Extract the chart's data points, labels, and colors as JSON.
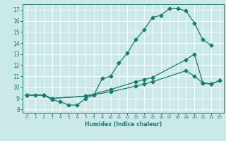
{
  "title": "",
  "xlabel": "Humidex (Indice chaleur)",
  "xlim": [
    -0.5,
    23.5
  ],
  "ylim": [
    7.7,
    17.5
  ],
  "xticks": [
    0,
    1,
    2,
    3,
    4,
    5,
    6,
    7,
    8,
    9,
    10,
    11,
    12,
    13,
    14,
    15,
    16,
    17,
    18,
    19,
    20,
    21,
    22,
    23
  ],
  "yticks": [
    8,
    9,
    10,
    11,
    12,
    13,
    14,
    15,
    16,
    17
  ],
  "bg_color": "#cce9e9",
  "line_color": "#1a7a6e",
  "grid_color": "#ffffff",
  "line1_x": [
    0,
    1,
    2,
    3,
    4,
    5,
    6,
    7,
    8,
    9,
    10,
    11,
    12,
    13,
    14,
    15,
    16,
    17,
    18,
    19,
    20,
    21,
    22
  ],
  "line1_y": [
    9.3,
    9.3,
    9.3,
    8.9,
    8.7,
    8.4,
    8.4,
    9.0,
    9.3,
    10.8,
    11.0,
    12.2,
    13.1,
    14.3,
    15.2,
    16.3,
    16.5,
    17.1,
    17.1,
    16.9,
    15.8,
    14.3,
    13.8
  ],
  "line2_x": [
    0,
    2,
    3,
    7,
    10,
    13,
    14,
    15,
    19,
    20,
    21,
    22,
    23
  ],
  "line2_y": [
    9.3,
    9.3,
    9.0,
    9.2,
    9.8,
    10.5,
    10.7,
    10.9,
    12.5,
    13.0,
    10.4,
    10.3,
    10.6
  ],
  "line3_x": [
    0,
    2,
    3,
    7,
    10,
    13,
    14,
    15,
    19,
    20,
    21,
    22,
    23
  ],
  "line3_y": [
    9.3,
    9.3,
    9.0,
    9.2,
    9.6,
    10.1,
    10.3,
    10.5,
    11.5,
    11.0,
    10.4,
    10.3,
    10.6
  ]
}
